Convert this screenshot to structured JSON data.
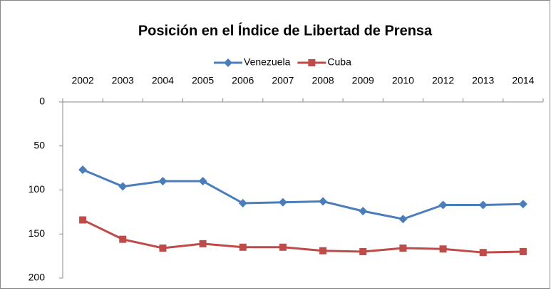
{
  "chart_data": {
    "type": "line",
    "title": "Posición en el Índice de Libertad de Prensa",
    "categories": [
      "2002",
      "2003",
      "2004",
      "2005",
      "2006",
      "2007",
      "2008",
      "2009",
      "2010",
      "2012",
      "2013",
      "2014"
    ],
    "series": [
      {
        "name": "Venezuela",
        "color": "#4a7ebb",
        "marker": "diamond",
        "values": [
          77,
          96,
          90,
          90,
          115,
          114,
          113,
          124,
          133,
          117,
          117,
          116
        ]
      },
      {
        "name": "Cuba",
        "color": "#be4b48",
        "marker": "square",
        "values": [
          134,
          156,
          166,
          161,
          165,
          165,
          169,
          170,
          166,
          167,
          171,
          170
        ]
      }
    ],
    "ylim": [
      0,
      200
    ],
    "yticks": [
      0,
      50,
      100,
      150,
      200
    ],
    "y_inverted": true,
    "grid": false,
    "legend": "top"
  }
}
